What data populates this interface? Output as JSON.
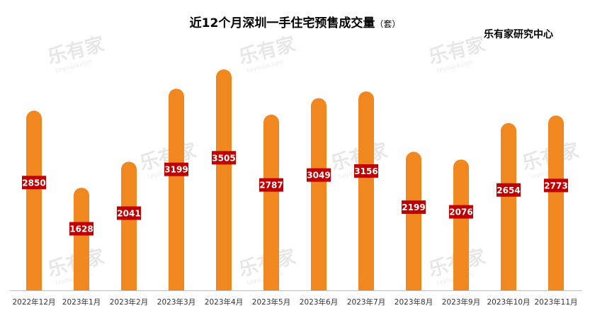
{
  "chart_data": {
    "type": "bar",
    "title": "近12个月深圳一手住宅预售成交量",
    "unit": "（套）",
    "source": "乐有家研究中心",
    "categories": [
      "2022年12月",
      "2023年1月",
      "2023年2月",
      "2023年3月",
      "2023年4月",
      "2023年5月",
      "2023年6月",
      "2023年7月",
      "2023年8月",
      "2023年9月",
      "2023年10月",
      "2023年11月"
    ],
    "values": [
      2850,
      1628,
      2041,
      3199,
      3505,
      2787,
      3049,
      3156,
      2199,
      2076,
      2654,
      2773
    ],
    "xlabel": "",
    "ylabel": "",
    "ylim": [
      0,
      3600
    ],
    "grid": false,
    "legend": "none"
  },
  "watermark": {
    "text": "乐有家",
    "subtext": "Leyoujia.com"
  },
  "colors": {
    "bar": "#F0871F",
    "label_bg": "#C00000",
    "axis": "#BFBFBF"
  }
}
